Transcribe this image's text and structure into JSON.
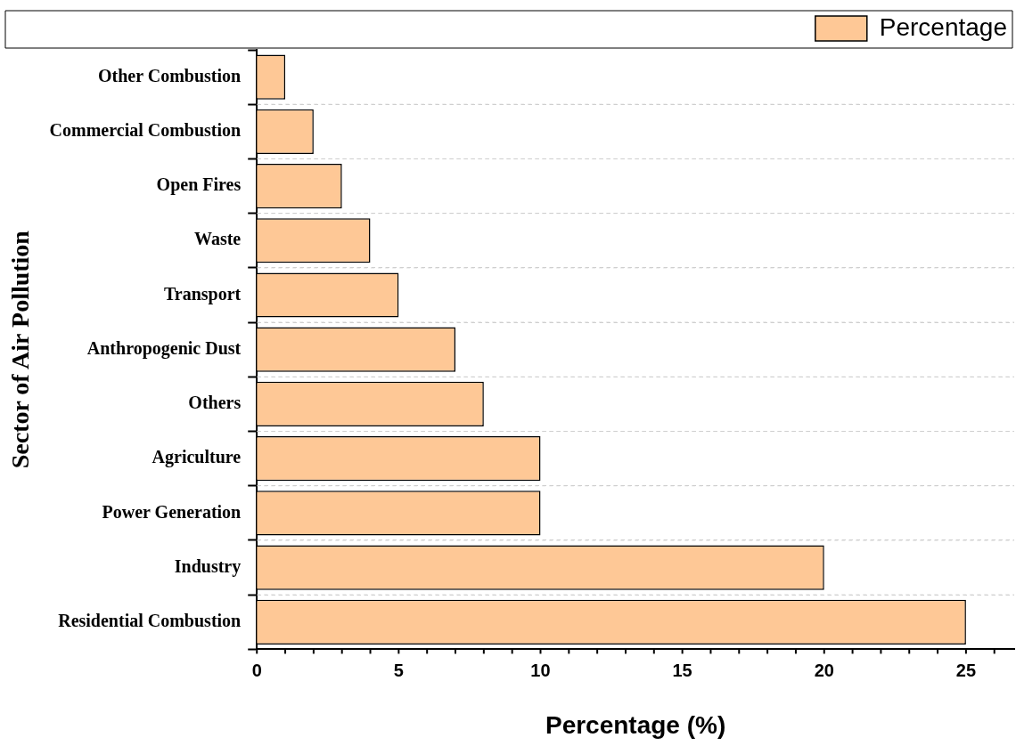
{
  "chart_data": {
    "type": "bar",
    "orientation": "horizontal",
    "xlabel": "Percentage (%)",
    "ylabel": "Sector of Air Pollution",
    "categories": [
      "Other Combustion",
      "Commercial Combustion",
      "Open Fires",
      "Waste",
      "Transport",
      "Anthropogenic Dust",
      "Others",
      "Agriculture",
      "Power Generation",
      "Industry",
      "Residential Combustion"
    ],
    "series": [
      {
        "name": "Percentage",
        "color": "#fec896",
        "values": [
          1,
          2,
          3,
          4,
          5,
          7,
          8,
          10,
          10,
          20,
          25
        ]
      }
    ],
    "xlim": [
      0,
      26.7
    ],
    "xticks": [
      0,
      5,
      10,
      15,
      20,
      25
    ],
    "grid": "y",
    "legend": "top right"
  }
}
